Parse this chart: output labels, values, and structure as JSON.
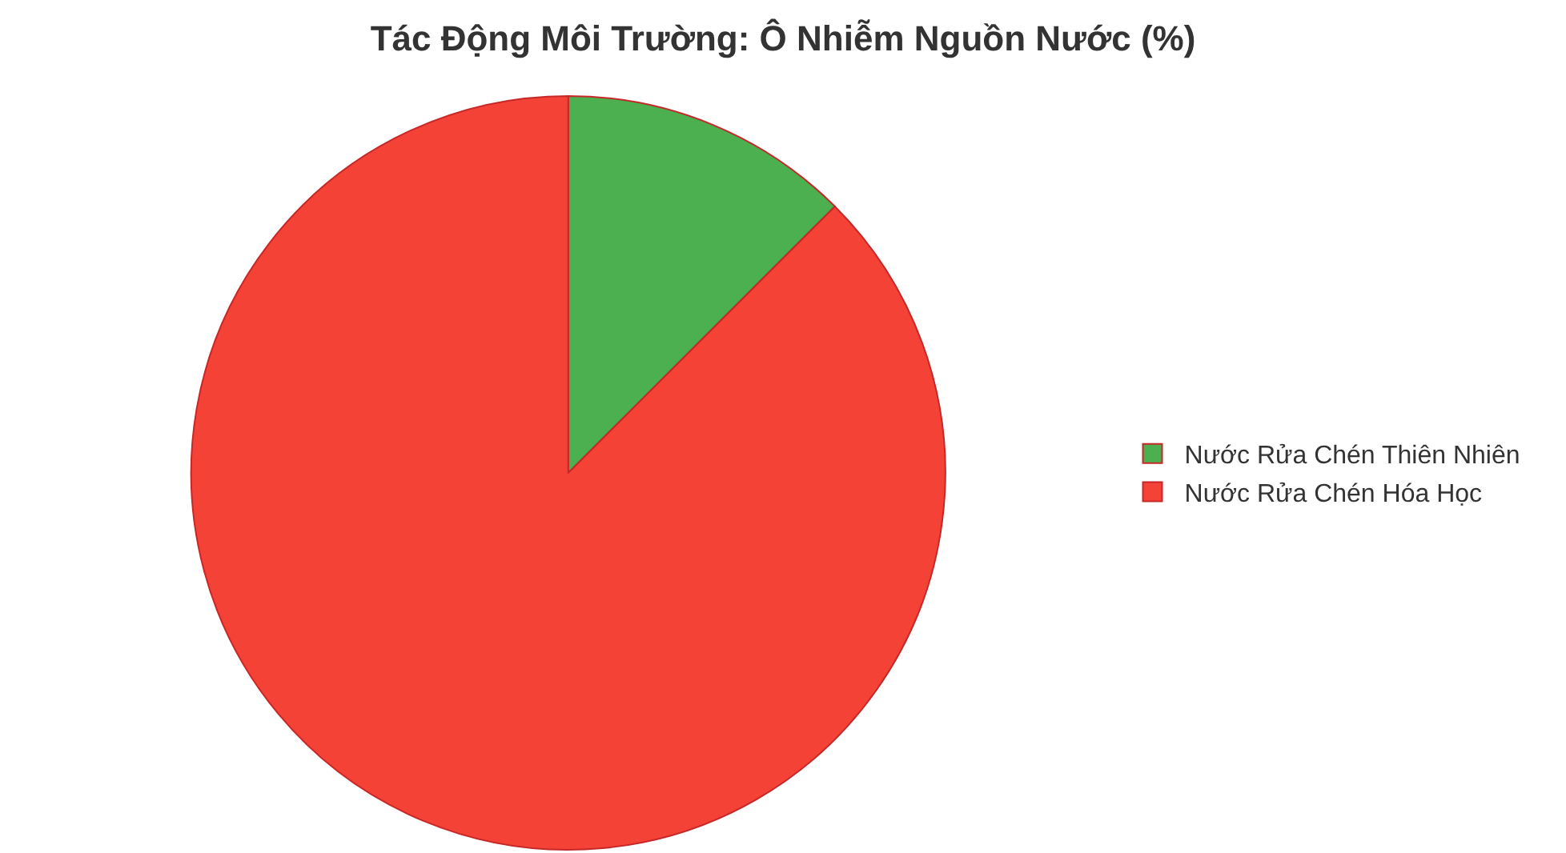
{
  "chart_data": {
    "type": "pie",
    "title": "Tác Động Môi Trường: Ô Nhiễm Nguồn Nước (%)",
    "categories": [
      "Nước Rửa Chén Thiên Nhiên",
      "Nước Rửa Chén Hóa Học"
    ],
    "values": [
      12.5,
      87.5
    ],
    "colors": [
      "#4caf50",
      "#f44336"
    ],
    "legend": "right"
  }
}
